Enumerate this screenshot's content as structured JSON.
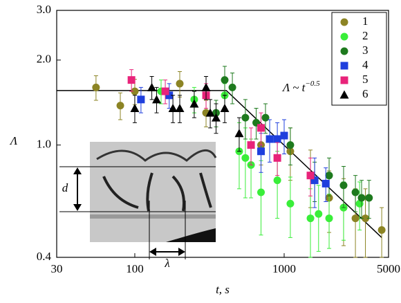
{
  "chart_data": {
    "type": "scatter",
    "xlabel": "t, s",
    "ylabel": "Λ",
    "xscale": "log",
    "yscale": "log",
    "xlim": [
      30,
      5000
    ],
    "xticks": [
      30,
      100,
      1000,
      5000
    ],
    "ylim": [
      0.4,
      3.0
    ],
    "yticks": [
      0.4,
      {
        "value": 1,
        "label": "1.0"
      },
      {
        "value": 2,
        "label": "2.0"
      },
      {
        "value": 3,
        "label": "3.0"
      }
    ],
    "legend": "upper right",
    "annotations": [
      {
        "text": "Λ ~ t",
        "superscript": "−0.5"
      },
      {
        "text": "d"
      },
      {
        "text": "λ"
      }
    ],
    "fit": {
      "color": "#000000",
      "x": [
        30,
        410,
        4500
      ],
      "y": [
        1.56,
        1.56,
        0.47
      ]
    },
    "series": [
      {
        "name": "1",
        "color": "#8c8424",
        "marker": "circle",
        "x": [
          55,
          80,
          100,
          200,
          300,
          700,
          1100,
          1500,
          2000,
          2500,
          3000,
          3500,
          4500
        ],
        "values": [
          1.6,
          1.38,
          1.55,
          1.65,
          1.3,
          1.0,
          0.95,
          0.78,
          0.65,
          0.6,
          0.55,
          0.55,
          0.5
        ],
        "errors": [
          0.16,
          0.15,
          0.16,
          0.17,
          0.14,
          0.15,
          0.2,
          0.18,
          0.16,
          0.16,
          0.15,
          0.15,
          0.1
        ]
      },
      {
        "name": "2",
        "color": "#39ee39",
        "marker": "circle",
        "x": [
          150,
          250,
          400,
          500,
          550,
          600,
          700,
          900,
          1100,
          1500,
          1700,
          2000,
          2500,
          3200
        ],
        "values": [
          1.55,
          1.45,
          1.5,
          0.95,
          0.9,
          0.85,
          0.68,
          0.75,
          0.62,
          0.55,
          0.57,
          0.55,
          0.6,
          0.62
        ],
        "errors": [
          0.15,
          0.15,
          0.15,
          0.25,
          0.25,
          0.2,
          0.2,
          0.2,
          0.15,
          0.15,
          0.15,
          0.12,
          0.14,
          0.12
        ]
      },
      {
        "name": "3",
        "color": "#1e7a1e",
        "marker": "circle",
        "x": [
          350,
          400,
          450,
          550,
          650,
          750,
          1100,
          1600,
          2000,
          2500,
          3000,
          3300,
          3700
        ],
        "values": [
          1.3,
          1.7,
          1.6,
          1.25,
          1.2,
          1.25,
          1.0,
          0.75,
          0.78,
          0.72,
          0.68,
          0.65,
          0.65
        ],
        "errors": [
          0.14,
          0.2,
          0.2,
          0.2,
          0.15,
          0.15,
          0.15,
          0.12,
          0.12,
          0.12,
          0.1,
          0.1,
          0.1
        ]
      },
      {
        "name": "4",
        "color": "#1f3fdd",
        "marker": "square",
        "x": [
          110,
          170,
          700,
          800,
          900,
          1000,
          1600,
          1900
        ],
        "values": [
          1.45,
          1.5,
          0.95,
          1.05,
          1.05,
          1.08,
          0.75,
          0.73
        ],
        "errors": [
          0.15,
          0.15,
          0.15,
          0.18,
          0.15,
          0.15,
          0.15,
          0.1
        ]
      },
      {
        "name": "5",
        "color": "#e8237a",
        "marker": "square",
        "x": [
          95,
          160,
          300,
          600,
          700,
          900,
          1500
        ],
        "values": [
          1.7,
          1.55,
          1.5,
          1.0,
          1.15,
          0.9,
          0.78
        ],
        "errors": [
          0.15,
          0.15,
          0.15,
          0.15,
          0.15,
          0.12,
          0.12
        ]
      },
      {
        "name": "6",
        "color": "#000000",
        "marker": "triangle",
        "x": [
          100,
          130,
          140,
          180,
          200,
          250,
          300,
          320,
          350,
          400,
          500
        ],
        "values": [
          1.35,
          1.6,
          1.45,
          1.35,
          1.35,
          1.4,
          1.6,
          1.3,
          1.25,
          1.35,
          1.1
        ],
        "errors": [
          0.15,
          0.15,
          0.15,
          0.15,
          0.15,
          0.15,
          0.15,
          0.15,
          0.15,
          0.15,
          0.15
        ]
      }
    ]
  }
}
